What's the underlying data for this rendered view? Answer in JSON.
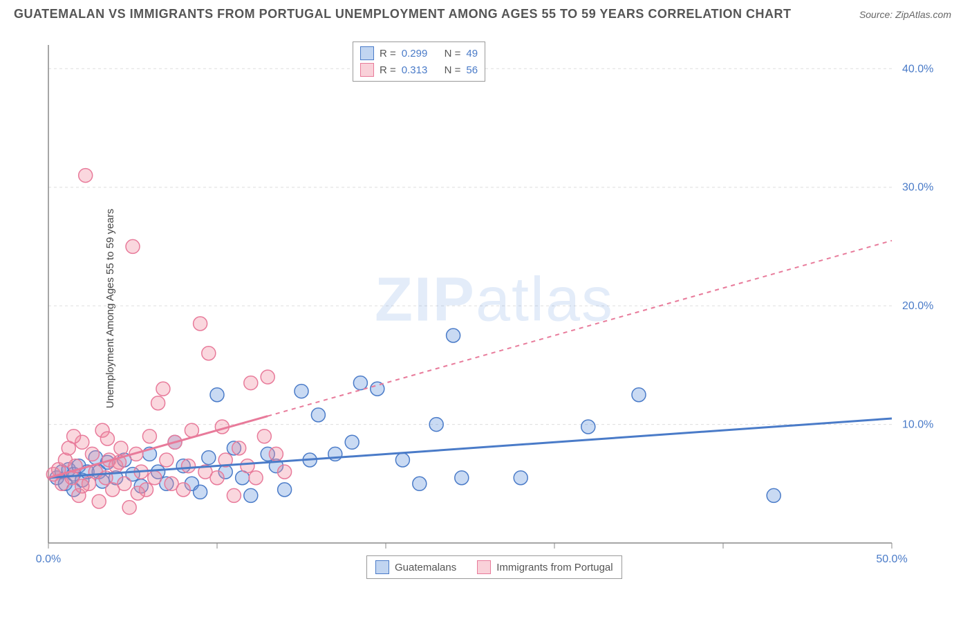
{
  "title": "GUATEMALAN VS IMMIGRANTS FROM PORTUGAL UNEMPLOYMENT AMONG AGES 55 TO 59 YEARS CORRELATION CHART",
  "source": "Source: ZipAtlas.com",
  "y_axis_label": "Unemployment Among Ages 55 to 59 years",
  "watermark_a": "ZIP",
  "watermark_b": "atlas",
  "chart": {
    "type": "scatter",
    "xlim": [
      0,
      50
    ],
    "ylim": [
      0,
      42
    ],
    "x_ticks": [
      0,
      10,
      20,
      30,
      40,
      50
    ],
    "x_tick_labels": [
      "0.0%",
      "",
      "",
      "",
      "",
      "50.0%"
    ],
    "y_ticks": [
      10,
      20,
      30,
      40
    ],
    "y_tick_labels": [
      "10.0%",
      "20.0%",
      "30.0%",
      "40.0%"
    ],
    "grid_y": [
      10,
      20,
      30,
      40
    ],
    "background_color": "#ffffff",
    "grid_color": "#dddddd",
    "axis_color": "#888888",
    "marker_radius": 10,
    "marker_stroke_width": 1.5,
    "series": [
      {
        "name": "Guatemalans",
        "color_fill": "rgba(100,150,220,0.35)",
        "color_stroke": "#4a7bc8",
        "R": "0.299",
        "N": "49",
        "trend": {
          "x1": 0,
          "y1": 5.5,
          "x2": 50,
          "y2": 10.5,
          "solid_until_x": 50,
          "dash": false
        },
        "points": [
          [
            0.5,
            5.5
          ],
          [
            0.8,
            6.0
          ],
          [
            1.0,
            5.0
          ],
          [
            1.2,
            6.2
          ],
          [
            1.5,
            5.8
          ],
          [
            1.8,
            6.5
          ],
          [
            2.0,
            5.3
          ],
          [
            2.3,
            6.0
          ],
          [
            3.0,
            6.0
          ],
          [
            3.2,
            5.2
          ],
          [
            3.5,
            6.8
          ],
          [
            4.0,
            5.5
          ],
          [
            4.5,
            7.0
          ],
          [
            5.0,
            5.8
          ],
          [
            5.5,
            4.8
          ],
          [
            6.0,
            7.5
          ],
          [
            6.5,
            6.0
          ],
          [
            7.0,
            5.0
          ],
          [
            7.5,
            8.5
          ],
          [
            8.0,
            6.5
          ],
          [
            8.5,
            5.0
          ],
          [
            9.0,
            4.3
          ],
          [
            9.5,
            7.2
          ],
          [
            10.0,
            12.5
          ],
          [
            10.5,
            6.0
          ],
          [
            11.0,
            8.0
          ],
          [
            11.5,
            5.5
          ],
          [
            12.0,
            4.0
          ],
          [
            13.0,
            7.5
          ],
          [
            13.5,
            6.5
          ],
          [
            14.0,
            4.5
          ],
          [
            15.0,
            12.8
          ],
          [
            15.5,
            7.0
          ],
          [
            16.0,
            10.8
          ],
          [
            17.0,
            7.5
          ],
          [
            18.0,
            8.5
          ],
          [
            18.5,
            13.5
          ],
          [
            19.5,
            13.0
          ],
          [
            21.0,
            7.0
          ],
          [
            22.0,
            5.0
          ],
          [
            23.0,
            10.0
          ],
          [
            24.0,
            17.5
          ],
          [
            24.5,
            5.5
          ],
          [
            28.0,
            5.5
          ],
          [
            32.0,
            9.8
          ],
          [
            35.0,
            12.5
          ],
          [
            43.0,
            4.0
          ],
          [
            1.5,
            4.5
          ],
          [
            2.8,
            7.2
          ]
        ]
      },
      {
        "name": "Immigrants from Portugal",
        "color_fill": "rgba(240,140,160,0.35)",
        "color_stroke": "#e87a9a",
        "R": "0.313",
        "N": "56",
        "trend": {
          "x1": 0,
          "y1": 5.5,
          "x2": 50,
          "y2": 25.5,
          "solid_until_x": 13,
          "dash": true
        },
        "points": [
          [
            0.3,
            5.8
          ],
          [
            0.6,
            6.2
          ],
          [
            0.8,
            5.0
          ],
          [
            1.0,
            7.0
          ],
          [
            1.2,
            8.0
          ],
          [
            1.4,
            5.5
          ],
          [
            1.6,
            6.5
          ],
          [
            1.8,
            4.0
          ],
          [
            2.0,
            8.5
          ],
          [
            2.2,
            31.0
          ],
          [
            2.4,
            5.0
          ],
          [
            2.6,
            7.5
          ],
          [
            2.8,
            6.0
          ],
          [
            3.0,
            3.5
          ],
          [
            3.2,
            9.5
          ],
          [
            3.4,
            5.5
          ],
          [
            3.6,
            7.0
          ],
          [
            3.8,
            4.5
          ],
          [
            4.0,
            6.5
          ],
          [
            4.3,
            8.0
          ],
          [
            4.5,
            5.0
          ],
          [
            4.8,
            3.0
          ],
          [
            5.0,
            25.0
          ],
          [
            5.2,
            7.5
          ],
          [
            5.5,
            6.0
          ],
          [
            5.8,
            4.5
          ],
          [
            6.0,
            9.0
          ],
          [
            6.3,
            5.5
          ],
          [
            6.5,
            11.8
          ],
          [
            6.8,
            13.0
          ],
          [
            7.0,
            7.0
          ],
          [
            7.3,
            5.0
          ],
          [
            7.5,
            8.5
          ],
          [
            8.0,
            4.5
          ],
          [
            8.3,
            6.5
          ],
          [
            8.5,
            9.5
          ],
          [
            9.0,
            18.5
          ],
          [
            9.3,
            6.0
          ],
          [
            9.5,
            16.0
          ],
          [
            10.0,
            5.5
          ],
          [
            10.3,
            9.8
          ],
          [
            10.5,
            7.0
          ],
          [
            11.0,
            4.0
          ],
          [
            11.3,
            8.0
          ],
          [
            11.8,
            6.5
          ],
          [
            12.0,
            13.5
          ],
          [
            12.3,
            5.5
          ],
          [
            12.8,
            9.0
          ],
          [
            13.0,
            14.0
          ],
          [
            13.5,
            7.5
          ],
          [
            14.0,
            6.0
          ],
          [
            1.5,
            9.0
          ],
          [
            2.0,
            4.8
          ],
          [
            3.5,
            8.8
          ],
          [
            4.2,
            6.8
          ],
          [
            5.3,
            4.2
          ]
        ]
      }
    ],
    "legend_top_labels": {
      "R": "R =",
      "N": "N ="
    },
    "legend_bottom": [
      "Guatemalans",
      "Immigrants from Portugal"
    ]
  }
}
